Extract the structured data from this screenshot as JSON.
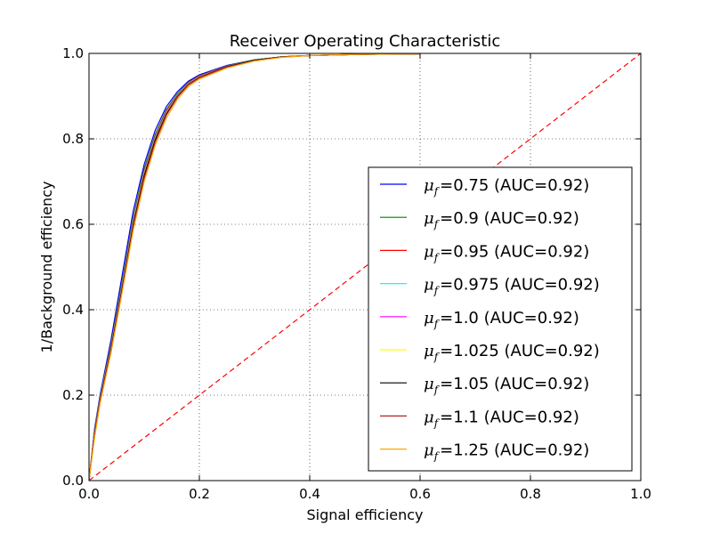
{
  "chart_data": {
    "type": "line",
    "title": "Receiver Operating Characteristic",
    "xlabel": "Signal efficiency",
    "ylabel": "1/Background efficiency",
    "xlim": [
      0.0,
      1.0
    ],
    "ylim": [
      0.0,
      1.0
    ],
    "xticks": [
      "0.0",
      "0.2",
      "0.4",
      "0.6",
      "0.8",
      "1.0"
    ],
    "yticks": [
      "0.0",
      "0.2",
      "0.4",
      "0.6",
      "0.8",
      "1.0"
    ],
    "grid": true,
    "legend_position": "lower right",
    "legend_symbol": "μ",
    "legend_subscript": "f",
    "series": [
      {
        "name": "=0.75 (AUC=0.92)",
        "color": "#0000ff",
        "x": [
          0,
          0.01,
          0.02,
          0.04,
          0.06,
          0.08,
          0.1,
          0.12,
          0.14,
          0.16,
          0.18,
          0.2,
          0.25,
          0.3,
          0.35,
          0.4,
          0.5,
          0.6
        ],
        "y": [
          0,
          0.12,
          0.2,
          0.33,
          0.48,
          0.63,
          0.74,
          0.82,
          0.875,
          0.91,
          0.935,
          0.95,
          0.972,
          0.985,
          0.992,
          0.995,
          0.998,
          0.999
        ]
      },
      {
        "name": "=0.9 (AUC=0.92)",
        "color": "#008000",
        "x": [
          0,
          0.01,
          0.02,
          0.04,
          0.06,
          0.08,
          0.1,
          0.12,
          0.14,
          0.16,
          0.18,
          0.2,
          0.25,
          0.3,
          0.35,
          0.4,
          0.5,
          0.6
        ],
        "y": [
          0,
          0.115,
          0.195,
          0.32,
          0.465,
          0.615,
          0.73,
          0.81,
          0.868,
          0.905,
          0.932,
          0.948,
          0.971,
          0.985,
          0.992,
          0.995,
          0.998,
          0.999
        ]
      },
      {
        "name": "=0.95 (AUC=0.92)",
        "color": "#ff0000",
        "x": [
          0,
          0.01,
          0.02,
          0.04,
          0.06,
          0.08,
          0.1,
          0.12,
          0.14,
          0.16,
          0.18,
          0.2,
          0.25,
          0.3,
          0.35,
          0.4,
          0.5,
          0.6
        ],
        "y": [
          0,
          0.113,
          0.193,
          0.317,
          0.46,
          0.61,
          0.725,
          0.806,
          0.865,
          0.903,
          0.931,
          0.947,
          0.97,
          0.984,
          0.992,
          0.995,
          0.998,
          0.999
        ]
      },
      {
        "name": "=0.975 (AUC=0.92)",
        "color": "#00ffff",
        "x": [
          0,
          0.01,
          0.02,
          0.04,
          0.06,
          0.08,
          0.1,
          0.12,
          0.14,
          0.16,
          0.18,
          0.2,
          0.25,
          0.3,
          0.35,
          0.4,
          0.5,
          0.6
        ],
        "y": [
          0,
          0.112,
          0.192,
          0.315,
          0.458,
          0.607,
          0.722,
          0.804,
          0.863,
          0.902,
          0.93,
          0.946,
          0.97,
          0.984,
          0.992,
          0.995,
          0.998,
          0.999
        ]
      },
      {
        "name": "=1.0 (AUC=0.92)",
        "color": "#ff00ff",
        "x": [
          0,
          0.01,
          0.02,
          0.04,
          0.06,
          0.08,
          0.1,
          0.12,
          0.14,
          0.16,
          0.18,
          0.2,
          0.25,
          0.3,
          0.35,
          0.4,
          0.5,
          0.6
        ],
        "y": [
          0,
          0.111,
          0.19,
          0.313,
          0.455,
          0.604,
          0.72,
          0.802,
          0.862,
          0.901,
          0.929,
          0.946,
          0.97,
          0.984,
          0.992,
          0.995,
          0.998,
          0.999
        ]
      },
      {
        "name": "=1.025 (AUC=0.92)",
        "color": "#ffff00",
        "x": [
          0,
          0.01,
          0.02,
          0.04,
          0.06,
          0.08,
          0.1,
          0.12,
          0.14,
          0.16,
          0.18,
          0.2,
          0.25,
          0.3,
          0.35,
          0.4,
          0.5,
          0.6
        ],
        "y": [
          0,
          0.11,
          0.189,
          0.311,
          0.452,
          0.601,
          0.717,
          0.8,
          0.86,
          0.9,
          0.928,
          0.945,
          0.969,
          0.984,
          0.992,
          0.995,
          0.998,
          0.999
        ]
      },
      {
        "name": "=1.05 (AUC=0.92)",
        "color": "#000000",
        "x": [
          0,
          0.01,
          0.02,
          0.04,
          0.06,
          0.08,
          0.1,
          0.12,
          0.14,
          0.16,
          0.18,
          0.2,
          0.25,
          0.3,
          0.35,
          0.4,
          0.5,
          0.6
        ],
        "y": [
          0,
          0.109,
          0.188,
          0.309,
          0.45,
          0.598,
          0.714,
          0.798,
          0.858,
          0.899,
          0.927,
          0.944,
          0.969,
          0.984,
          0.992,
          0.995,
          0.998,
          0.999
        ]
      },
      {
        "name": "=1.1 (AUC=0.92)",
        "color": "#b22222",
        "x": [
          0,
          0.01,
          0.02,
          0.04,
          0.06,
          0.08,
          0.1,
          0.12,
          0.14,
          0.16,
          0.18,
          0.2,
          0.25,
          0.3,
          0.35,
          0.4,
          0.5,
          0.6
        ],
        "y": [
          0,
          0.107,
          0.186,
          0.305,
          0.445,
          0.592,
          0.708,
          0.793,
          0.855,
          0.897,
          0.926,
          0.943,
          0.968,
          0.983,
          0.991,
          0.995,
          0.998,
          0.999
        ]
      },
      {
        "name": "=1.25 (AUC=0.92)",
        "color": "#ffa500",
        "x": [
          0,
          0.01,
          0.02,
          0.04,
          0.06,
          0.08,
          0.1,
          0.12,
          0.14,
          0.16,
          0.18,
          0.2,
          0.25,
          0.3,
          0.35,
          0.4,
          0.5,
          0.6
        ],
        "y": [
          0,
          0.1,
          0.18,
          0.3,
          0.44,
          0.585,
          0.7,
          0.785,
          0.848,
          0.892,
          0.922,
          0.94,
          0.966,
          0.982,
          0.991,
          0.995,
          0.998,
          0.999
        ]
      }
    ],
    "reference": {
      "color": "#ff0000",
      "x": [
        0,
        1
      ],
      "y": [
        0,
        1
      ]
    }
  }
}
